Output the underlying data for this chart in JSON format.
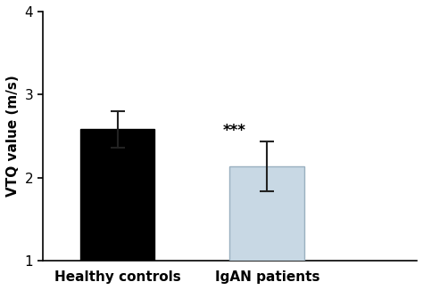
{
  "categories": [
    "Healthy controls",
    "IgAN patients"
  ],
  "values": [
    2.58,
    2.13
  ],
  "errors": [
    0.22,
    0.3
  ],
  "bar_colors": [
    "#000000",
    "#c8d8e4"
  ],
  "bar_edge_colors": [
    "#000000",
    "#9ab0c0"
  ],
  "ylabel": "VTQ value (m/s)",
  "ylim": [
    1,
    4
  ],
  "yticks": [
    1,
    2,
    3,
    4
  ],
  "annotation": "***",
  "annotation_bar_index": 1,
  "bar_width": 0.5,
  "background_color": "#ffffff",
  "spine_color": "#000000",
  "tick_color": "#000000",
  "label_fontsize": 11,
  "tick_fontsize": 11,
  "annotation_fontsize": 12
}
